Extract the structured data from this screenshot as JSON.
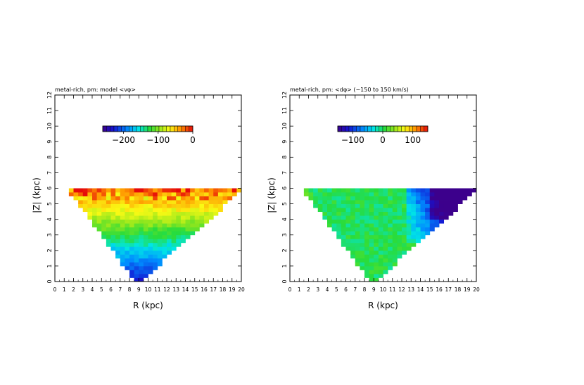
{
  "chart_data": [
    {
      "type": "heatmap",
      "title": "metal-rich, pm: model <vφ>",
      "xlabel": "R (kpc)",
      "ylabel": "|Z| (kpc)",
      "xlim": [
        0,
        20
      ],
      "ylim": [
        0,
        12
      ],
      "x_ticks": [
        0,
        1,
        2,
        3,
        4,
        5,
        6,
        7,
        8,
        9,
        10,
        11,
        12,
        13,
        14,
        15,
        16,
        17,
        18,
        19,
        20
      ],
      "y_ticks": [
        0,
        1,
        2,
        3,
        4,
        5,
        6,
        7,
        8,
        9,
        10,
        11,
        12
      ],
      "colorbar": {
        "min": -260,
        "max": 0,
        "ticks": [
          -200,
          -100,
          0
        ],
        "colormap": "rainbow"
      },
      "grid": false,
      "coverage": "wedge from (R≈9, |Z|=0) widening to R≈1–20 at |Z|=6",
      "field": "model",
      "rows_approx_value": [
        {
          "z": 0.25,
          "value": -230
        },
        {
          "z": 1.0,
          "value": -215
        },
        {
          "z": 2.0,
          "value": -185
        },
        {
          "z": 3.0,
          "value": -150
        },
        {
          "z": 4.0,
          "value": -110
        },
        {
          "z": 5.0,
          "value": -60
        },
        {
          "z": 5.75,
          "value": -25
        }
      ]
    },
    {
      "type": "heatmap",
      "title": "metal-rich, pm: <dφ> (−150 to 150 km/s)",
      "xlabel": "R (kpc)",
      "ylabel": "|Z| (kpc)",
      "xlim": [
        0,
        20
      ],
      "ylim": [
        0,
        12
      ],
      "x_ticks": [
        0,
        1,
        2,
        3,
        4,
        5,
        6,
        7,
        8,
        9,
        10,
        11,
        12,
        13,
        14,
        15,
        16,
        17,
        18,
        19,
        20
      ],
      "y_ticks": [
        0,
        1,
        2,
        3,
        4,
        5,
        6,
        7,
        8,
        9,
        10,
        11,
        12
      ],
      "colorbar": {
        "min": -150,
        "max": 150,
        "ticks": [
          -100,
          0,
          100
        ],
        "colormap": "rainbow"
      },
      "grid": false,
      "coverage": "wedge from (R≈9, |Z|=0) widening to R≈1–20 at |Z|=6",
      "field": "residual",
      "description_values": [
        {
          "region": "R < 12 kpc",
          "value": 0
        },
        {
          "region": "R 13–16 kpc, |Z| > 3",
          "value": -70
        },
        {
          "region": "R > 16 kpc, |Z| > 4",
          "value": -140
        }
      ]
    }
  ]
}
